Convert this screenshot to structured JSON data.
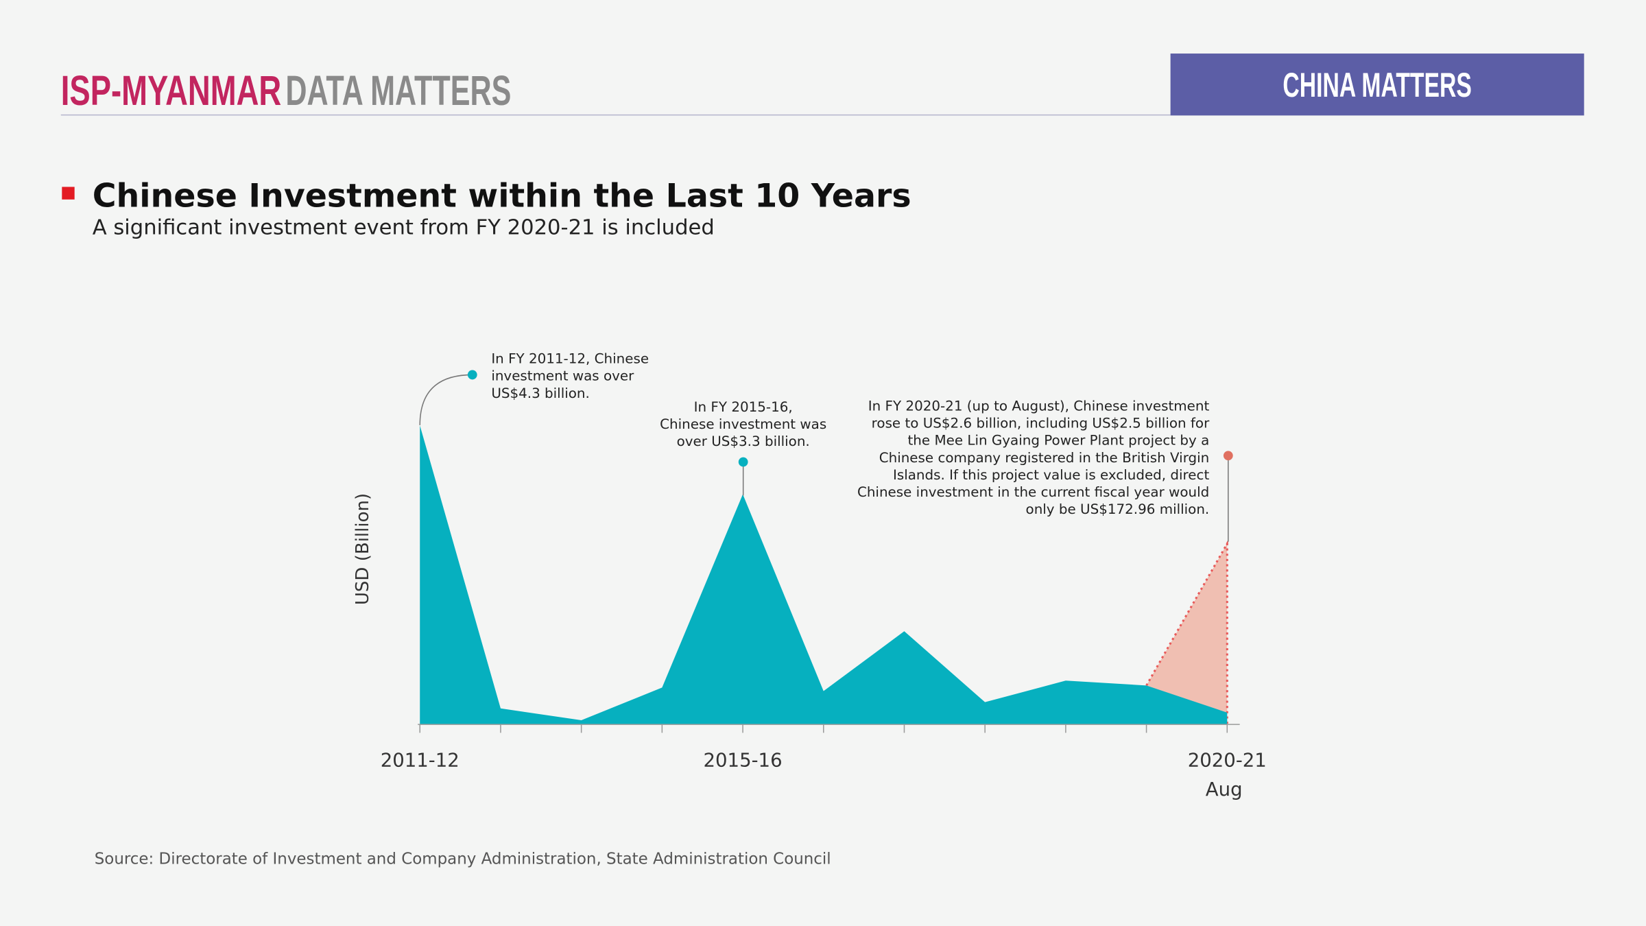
{
  "header": {
    "brand": "ISP-MYANMAR",
    "section": "DATA MATTERS",
    "badge": "CHINA MATTERS"
  },
  "chart_data": {
    "type": "area",
    "title": "Chinese Investment within the Last 10 Years",
    "subtitle": "A significant investment event from FY 2020-21 is included",
    "y_label": "USD (Billion)",
    "categories": [
      "2011-12",
      null,
      null,
      null,
      "2015-16",
      null,
      null,
      null,
      null,
      null,
      "2020-21"
    ],
    "x_note": "Aug",
    "series": [
      {
        "color": "#06b0bf",
        "values": [
          4.3,
          0.23,
          0.06,
          0.53,
          3.31,
          0.48,
          1.34,
          0.32,
          0.63,
          0.56,
          0.17
        ]
      },
      {
        "color": "#f0bfb2",
        "edge_color": "#e85a5a",
        "values": [
          null,
          null,
          null,
          null,
          null,
          null,
          null,
          null,
          null,
          0.56,
          2.6
        ]
      }
    ],
    "ylim": [
      0,
      4.5
    ],
    "annotations": [
      {
        "color": "#06b0bf",
        "lines": [
          "In FY 2011-12, Chinese",
          "investment was over",
          "US$4.3 billion."
        ]
      },
      {
        "color": "#06b0bf",
        "lines": [
          "In FY 2015-16,",
          "Chinese investment was",
          "over US$3.3 billion."
        ]
      },
      {
        "color": "#e07060",
        "lines": [
          "In FY 2020-21 (up to August), Chinese investment",
          "rose to US$2.6 billion, including US$2.5 billion for",
          "the Mee Lin Gyaing Power Plant project by a",
          "Chinese company registered in the British Virgin",
          "Islands. If this project value is excluded, direct",
          "Chinese investment in the current fiscal year would",
          "only be US$172.96 million."
        ]
      }
    ],
    "source": "Source: Directorate of Investment and Company Administration, State Administration Council"
  }
}
